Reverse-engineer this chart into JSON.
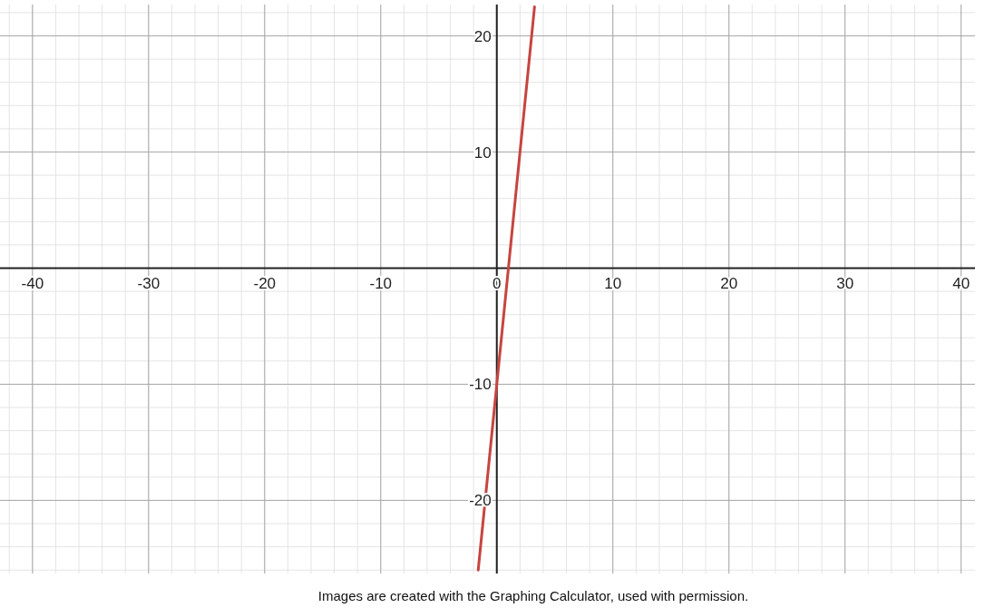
{
  "chart_data": {
    "type": "line",
    "x": [
      -1.6,
      3.25
    ],
    "series": [
      {
        "color": "#c74440",
        "values": [
          -26,
          22.5
        ]
      }
    ],
    "xlim": [
      -42.8,
      41.2
    ],
    "ylim": [
      -26.3,
      22.7
    ],
    "xticks": [
      -40,
      -30,
      -20,
      -10,
      0,
      10,
      20,
      30,
      40
    ],
    "yticks": [
      -20,
      -10,
      10,
      20
    ],
    "grid": true,
    "line_style": "solid",
    "marker": "none",
    "annotations": [
      "Images are created with the Graphing Calculator, used with permission."
    ]
  }
}
